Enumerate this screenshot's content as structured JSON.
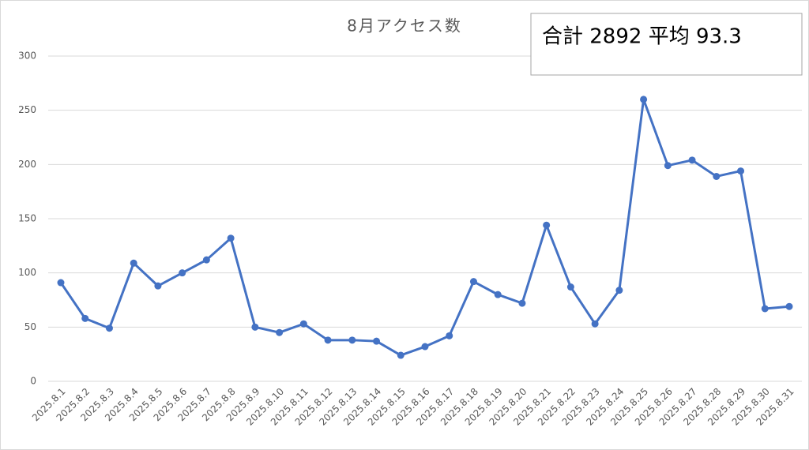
{
  "chart_data": {
    "type": "line",
    "title": "8月アクセス数",
    "annotation": "合計 2892 平均 93.3",
    "categories": [
      "2025.8.1",
      "2025.8.2",
      "2025.8.3",
      "2025.8.4",
      "2025.8.5",
      "2025.8.6",
      "2025.8.7",
      "2025.8.8",
      "2025.8.9",
      "2025.8.10",
      "2025.8.11",
      "2025.8.12",
      "2025.8.13",
      "2025.8.14",
      "2025.8.15",
      "2025.8.16",
      "2025.8.17",
      "2025.8.18",
      "2025.8.19",
      "2025.8.20",
      "2025.8.21",
      "2025.8.22",
      "2025.8.23",
      "2025.8.24",
      "2025.8.25",
      "2025.8.26",
      "2025.8.27",
      "2025.8.28",
      "2025.8.29",
      "2025.8.30",
      "2025.8.31"
    ],
    "values": [
      91,
      58,
      49,
      109,
      88,
      100,
      112,
      132,
      50,
      45,
      53,
      38,
      38,
      37,
      24,
      32,
      42,
      92,
      80,
      72,
      144,
      87,
      53,
      84,
      260,
      199,
      204,
      189,
      194,
      67,
      69
    ],
    "color": "#4472c4",
    "ylim": [
      0,
      300
    ],
    "yticks": [
      0,
      50,
      100,
      150,
      200,
      250,
      300
    ],
    "grid": true
  }
}
